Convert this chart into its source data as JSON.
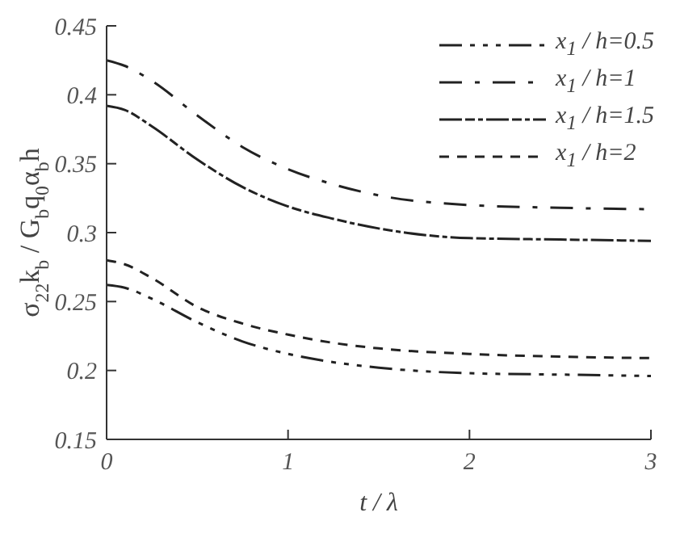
{
  "chart_data": {
    "type": "line",
    "xlabel": "t / λ",
    "ylabel": "σ$_{22}$k$_{b}$ / G$_{b}$q$_{0}$α$_{b}$h",
    "xlim": [
      0,
      3
    ],
    "xticks": [
      0,
      1,
      2,
      3
    ],
    "ylim": [
      0.15,
      0.45
    ],
    "yticks": [
      0.15,
      0.2,
      0.25,
      0.3,
      0.35,
      0.4,
      0.45
    ],
    "grid": false,
    "legend": "top right",
    "marker": "none",
    "line_style": "dashed",
    "series": [
      {
        "name": "x$_{1}$ / h=0.5",
        "color": "#222222",
        "x": [
          0,
          0.1,
          0.25,
          0.5,
          0.75,
          1,
          1.25,
          1.5,
          2,
          2.5,
          3
        ],
        "values": [
          0.262,
          0.26,
          0.252,
          0.235,
          0.221,
          0.212,
          0.206,
          0.202,
          0.198,
          0.197,
          0.196
        ]
      },
      {
        "name": "x$_{1}$ / h=1",
        "color": "#222222",
        "x": [
          0,
          0.1,
          0.25,
          0.5,
          0.75,
          1,
          1.25,
          1.5,
          2,
          2.5,
          3
        ],
        "values": [
          0.425,
          0.421,
          0.41,
          0.385,
          0.362,
          0.346,
          0.335,
          0.327,
          0.32,
          0.318,
          0.317
        ]
      },
      {
        "name": "x$_{1}$ / h=1.5",
        "color": "#222222",
        "x": [
          0,
          0.1,
          0.25,
          0.5,
          0.75,
          1,
          1.25,
          1.5,
          2,
          2.5,
          3
        ],
        "values": [
          0.392,
          0.389,
          0.377,
          0.353,
          0.333,
          0.319,
          0.31,
          0.303,
          0.296,
          0.295,
          0.294
        ]
      },
      {
        "name": "x$_{1}$ / h=2",
        "color": "#222222",
        "x": [
          0,
          0.1,
          0.25,
          0.5,
          0.75,
          1,
          1.25,
          1.5,
          2,
          2.5,
          3
        ],
        "values": [
          0.28,
          0.277,
          0.267,
          0.246,
          0.234,
          0.226,
          0.22,
          0.216,
          0.212,
          0.21,
          0.209
        ]
      }
    ]
  }
}
